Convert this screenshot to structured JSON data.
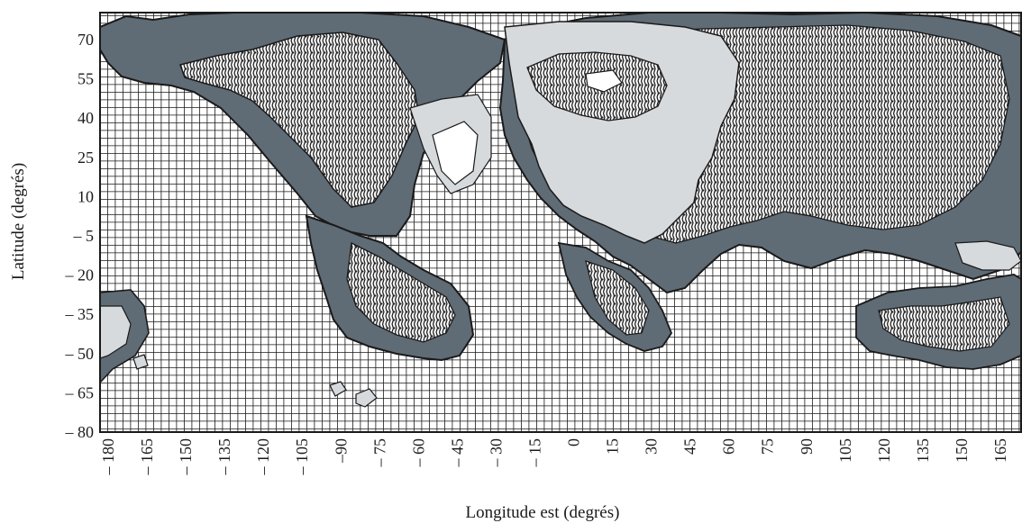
{
  "map": {
    "xlabel": "Longitude est (degrés)",
    "ylabel": "Latitude (degrés)",
    "x_ticks": [
      "– 180",
      "– 165",
      "– 150",
      "– 135",
      "– 120",
      "– 105",
      "–90",
      "– 75",
      "– 60",
      "– 45",
      "– 30",
      "– 15",
      "0",
      "15",
      "30",
      "45",
      "60",
      "75",
      "90",
      "105",
      "120",
      "135",
      "150",
      "165"
    ],
    "y_ticks": [
      "70",
      "55",
      "40",
      "25",
      "10",
      "– 5",
      "– 20",
      "– 35",
      "– 50",
      "– 65",
      "– 80"
    ],
    "lon_range": [
      -180,
      172
    ],
    "lat_range": [
      -80,
      75
    ],
    "grid": true,
    "colors": {
      "ocean_grid": "#1a1a1a",
      "band_dark": "#5f6b75",
      "band_light": "#d7dadd",
      "hatched": "#2a2a2a"
    }
  }
}
